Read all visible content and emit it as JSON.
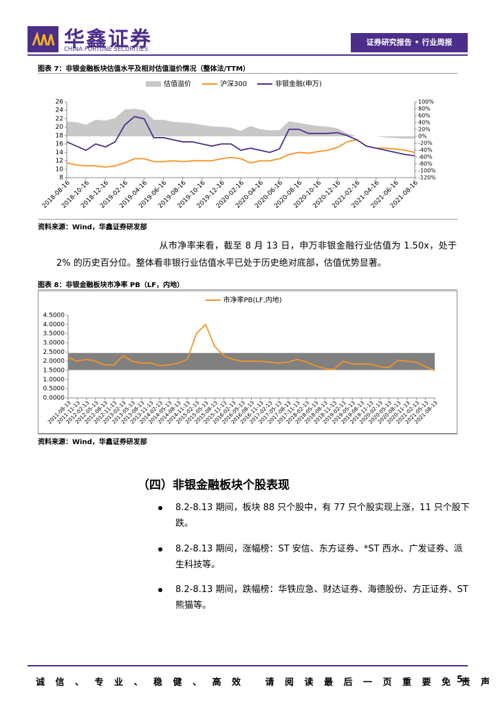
{
  "header": {
    "brand": "华鑫证券",
    "brand_en": "CHINA FORTUNE SECURITIES",
    "report_type": "证券研究报告 • 行业周报"
  },
  "figures": [
    {
      "caption": "图表 7：非银金融板块估值水平及相对估值溢价情况（整体法/TTM）",
      "source": "资料来源：Wind，华鑫证券研发部"
    },
    {
      "caption": "图表 8：非银金融板块市净率 PB（LF，内地）",
      "source": "资料来源：Wind，华鑫证券研发部"
    }
  ],
  "chart_data": [
    {
      "type": "line",
      "categories": [
        "2018-08-16",
        null,
        "2018-10-16",
        null,
        "2018-12-16",
        null,
        "2019-02-16",
        null,
        "2019-04-16",
        null,
        "2019-06-16",
        null,
        "2019-08-16",
        null,
        "2019-10-16",
        null,
        "2019-12-16",
        null,
        "2020-02-16",
        null,
        "2020-04-16",
        null,
        "2020-06-16",
        null,
        "2020-08-16",
        null,
        "2020-10-16",
        null,
        "2020-12-16",
        null,
        "2021-02-16",
        null,
        "2021-04-16",
        null,
        "2021-06-16",
        null,
        "2021-08-16"
      ],
      "series": [
        {
          "name": "估值溢价",
          "color": "#c8c8c8",
          "style": "area",
          "axis": "y2",
          "values": [
            43,
            41,
            34,
            48,
            46,
            53,
            78,
            80,
            76,
            48,
            48,
            42,
            40,
            38,
            33,
            29,
            28,
            25,
            16,
            30,
            21,
            17,
            18,
            44,
            39,
            34,
            30,
            28,
            23,
            9,
            0,
            0,
            0,
            -3,
            -5,
            -7,
            -6
          ]
        },
        {
          "name": "沪深300",
          "color": "#f5921e",
          "values": [
            11.5,
            11,
            10.8,
            10.8,
            10.5,
            10.8,
            11.5,
            12.5,
            12.5,
            11.8,
            11.8,
            12,
            11.8,
            12,
            12,
            12,
            12.5,
            12.8,
            12.5,
            11.5,
            12,
            12,
            12.5,
            13.5,
            14,
            13.8,
            14.2,
            14.5,
            15.2,
            16.5,
            17,
            15.5,
            15,
            15,
            14.8,
            14.5,
            14
          ]
        },
        {
          "name": "非银金融(申万)",
          "color": "#4b2d8a",
          "values": [
            16.5,
            15.5,
            14.5,
            16,
            15.3,
            16.5,
            20.5,
            22.5,
            22,
            17.5,
            17.5,
            17,
            16.5,
            16.5,
            16,
            15.5,
            16,
            16,
            14.5,
            15,
            14.5,
            14,
            14.8,
            19.5,
            19.5,
            18.5,
            18.5,
            18.5,
            18.7,
            18,
            17,
            15.5,
            15,
            14.5,
            14,
            13.5,
            13.2
          ]
        }
      ],
      "ylim": [
        8,
        26
      ],
      "yticks": [
        8,
        10,
        12,
        14,
        16,
        18,
        20,
        22,
        24,
        26
      ],
      "y2lim": [
        -120,
        100
      ],
      "y2ticks": [
        {
          "value": -120,
          "label": "-120%"
        },
        {
          "value": -100,
          "label": "-100%"
        },
        {
          "value": -80,
          "label": "-80%"
        },
        {
          "value": -60,
          "label": "-60%"
        },
        {
          "value": -40,
          "label": "-40%"
        },
        {
          "value": -20,
          "label": "-20%"
        },
        {
          "value": 0,
          "label": "0%"
        },
        {
          "value": 20,
          "label": "20%"
        },
        {
          "value": 40,
          "label": "40%"
        },
        {
          "value": 60,
          "label": "60%"
        },
        {
          "value": 80,
          "label": "80%"
        },
        {
          "value": 100,
          "label": "100%"
        }
      ]
    },
    {
      "type": "line",
      "categories": [
        "2011-08-13",
        "2011-11-13",
        "2012-02-13",
        "2012-05-13",
        "2012-08-13",
        "2012-11-13",
        "2013-02-13",
        "2013-05-13",
        "2013-08-13",
        "2013-11-13",
        "2014-02-13",
        "2014-05-13",
        "2014-08-13",
        "2014-11-13",
        "2015-02-13",
        "2015-05-13",
        "2015-08-13",
        "2015-11-13",
        "2016-02-13",
        "2016-05-13",
        "2016-08-13",
        "2016-11-13",
        "2017-02-13",
        "2017-05-13",
        "2017-08-13",
        "2017-11-13",
        "2018-02-13",
        "2018-05-13",
        "2018-08-13",
        "2018-11-13",
        "2019-02-13",
        "2019-05-13",
        "2019-08-13",
        "2019-11-13",
        "2020-02-13",
        "2020-05-13",
        "2020-08-13",
        "2020-11-13",
        "2021-02-13",
        "2021-05-13",
        "2021-08-13"
      ],
      "series": [
        {
          "name": "市净率PB(LF,内地)",
          "color": "#f0952a",
          "values": [
            2.2,
            2.0,
            2.1,
            2.0,
            1.8,
            1.8,
            2.3,
            2.0,
            1.9,
            1.9,
            1.75,
            1.8,
            1.9,
            2.1,
            3.5,
            4.0,
            2.8,
            2.3,
            2.1,
            2.0,
            2.0,
            2.0,
            1.95,
            1.9,
            1.95,
            2.1,
            1.95,
            1.75,
            1.6,
            1.55,
            2.0,
            1.85,
            1.85,
            1.85,
            1.7,
            1.65,
            2.05,
            2.0,
            1.95,
            1.7,
            1.5
          ]
        }
      ],
      "band": [
        1.52,
        2.45
      ],
      "band_color": "#808080",
      "ylim": [
        0,
        4.5
      ],
      "yticks": [
        {
          "value": 0,
          "label": "0.0000"
        },
        {
          "value": 0.5,
          "label": "0.5000"
        },
        {
          "value": 1,
          "label": "1.0000"
        },
        {
          "value": 1.5,
          "label": "1.5000"
        },
        {
          "value": 2,
          "label": "2.0000"
        },
        {
          "value": 2.5,
          "label": "2.5000"
        },
        {
          "value": 3,
          "label": "3.0000"
        },
        {
          "value": 3.5,
          "label": "3.5000"
        },
        {
          "value": 4,
          "label": "4.0000"
        },
        {
          "value": 4.5,
          "label": "4.5000"
        }
      ]
    }
  ],
  "paragraph": "从市净率来看，截至 8 月 13 日，申万非银金融行业估值为 1.50x，处于 2% 的历史百分位。整体看非银行业估值水平已处于历史绝对底部，估值优势显著。",
  "section_title": "（四）非银金融板块个股表现",
  "bullets": [
    "8.2-8.13 期间，板块 88 只个股中，有 77 只个股实现上涨，11 只个股下跌。",
    "8.2-8.13 期间，涨幅榜：ST 安信、东方证券、*ST 西水、广发证券、派生科技等。",
    "8.2-8.13 期间，跌幅榜：华铁应急、财达证券、海德股份、方正证券、ST 熊猫等。"
  ],
  "footer": {
    "slogan": "诚信、专业、稳健、高效 请阅读最后一页重要免责声明",
    "page": "5"
  }
}
